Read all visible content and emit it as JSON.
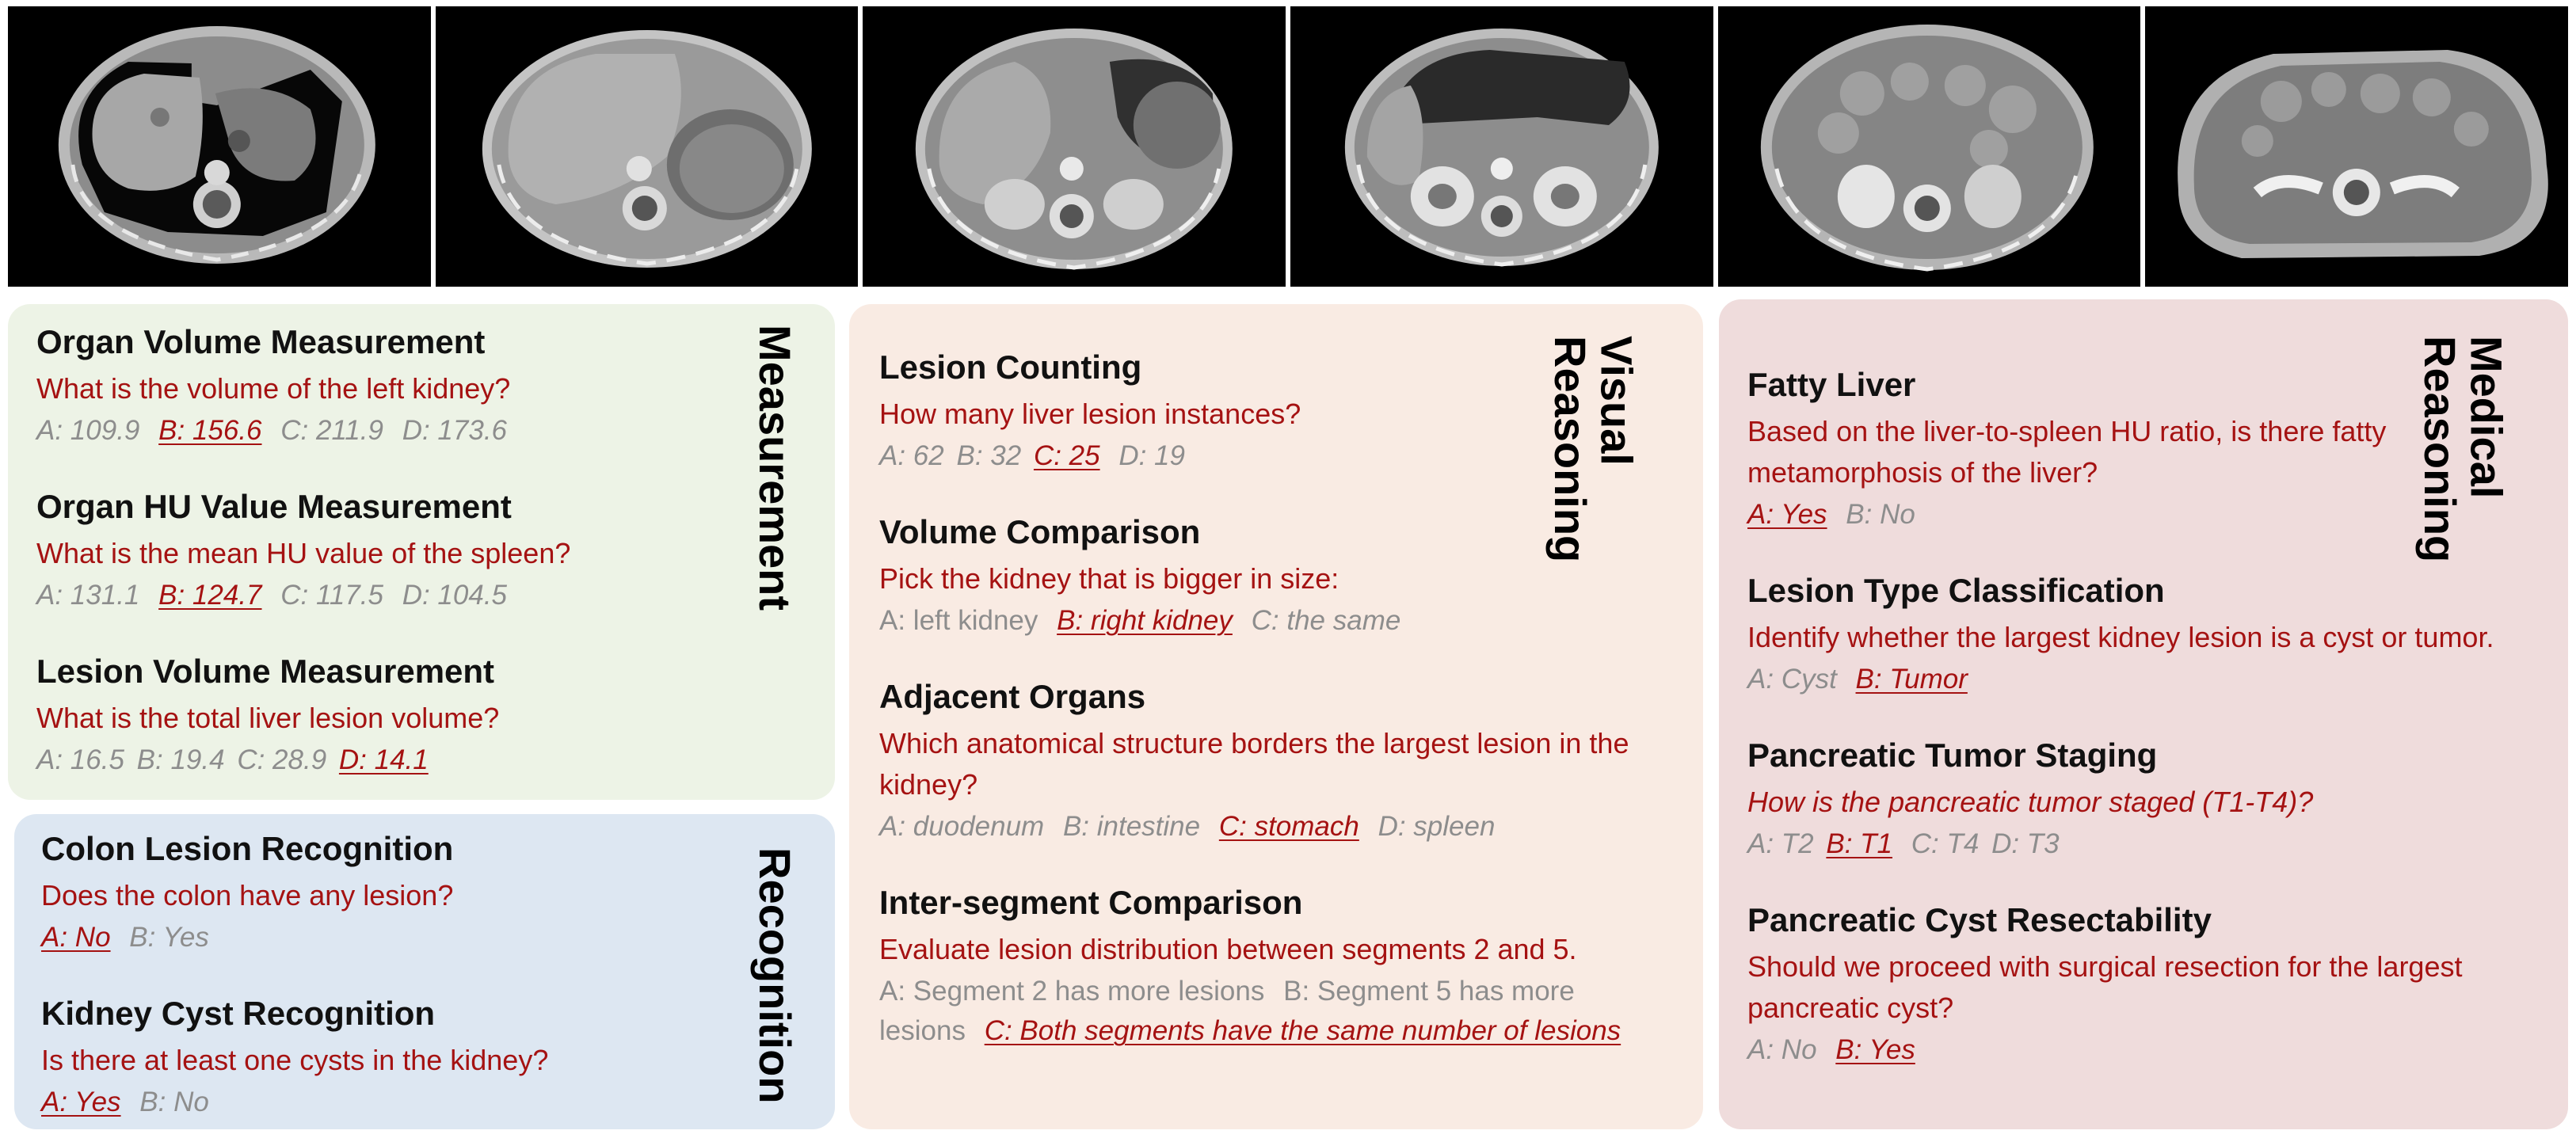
{
  "ct_images": [
    {
      "name": "ct-slice-1"
    },
    {
      "name": "ct-slice-2"
    },
    {
      "name": "ct-slice-3"
    },
    {
      "name": "ct-slice-4"
    },
    {
      "name": "ct-slice-5"
    },
    {
      "name": "ct-slice-6"
    }
  ],
  "colors": {
    "question": "#a51212",
    "option": "#8d8d8d",
    "measurement_bg": "#edf3e6",
    "recognition_bg": "#dde7f2",
    "visual_bg": "#f9ebe3",
    "medical_bg": "#efdcdc"
  },
  "measurement": {
    "category": "Measurement",
    "items": [
      {
        "title": "Organ Volume Measurement",
        "question": "What is the volume of the left kidney?",
        "options": [
          "A: 109.9",
          "B: 156.6",
          "C: 211.9",
          "D: 173.6"
        ],
        "correct": "B: 156.6"
      },
      {
        "title": "Organ HU Value Measurement",
        "question": "What is the mean HU value of the spleen?",
        "options": [
          "A: 131.1",
          "B: 124.7",
          "C: 117.5",
          "D: 104.5"
        ],
        "correct": "B: 124.7"
      },
      {
        "title": "Lesion Volume Measurement",
        "question": "What is the total liver lesion volume?",
        "options": [
          "A: 16.5",
          "B: 19.4",
          "C: 28.9",
          "D: 14.1"
        ],
        "correct": "D: 14.1"
      }
    ]
  },
  "recognition": {
    "category": "Recognition",
    "items": [
      {
        "title": "Colon Lesion Recognition",
        "question": "Does the colon have any lesion?",
        "options": [
          "A: No",
          "B: Yes"
        ],
        "correct": "A: No"
      },
      {
        "title": "Kidney Cyst Recognition",
        "question": "Is there at least one cysts in the kidney?",
        "options": [
          "A: Yes",
          "B: No"
        ],
        "correct": "A: Yes"
      }
    ]
  },
  "visual": {
    "category_line1": "Visual",
    "category_line2": "Reasoning",
    "items": [
      {
        "title": "Lesion Counting",
        "question": "How many liver lesion instances?",
        "options": [
          "A: 62",
          "B: 32",
          "C: 25",
          "D: 19"
        ],
        "correct": "C: 25"
      },
      {
        "title": "Volume Comparison",
        "question": "Pick the kidney that is bigger in size:",
        "options": [
          "A: left kidney",
          "B: right kidney",
          "C: the same"
        ],
        "correct": "B: right kidney"
      },
      {
        "title": "Adjacent Organs",
        "question": "Which anatomical structure borders the largest lesion in the kidney?",
        "options": [
          "A: duodenum",
          "B: intestine",
          "C: stomach",
          "D: spleen"
        ],
        "correct": "C: stomach"
      },
      {
        "title": "Inter-segment Comparison",
        "question": "Evaluate lesion distribution between segments 2 and 5.",
        "options": [
          "A: Segment 2 has more lesions",
          "B: Segment 5 has more lesions",
          "C: Both segments have the same number of lesions"
        ],
        "correct": "C: Both segments have the same number of lesions"
      }
    ]
  },
  "medical": {
    "category_line1": "Medical",
    "category_line2": "Reasoning",
    "items": [
      {
        "title": "Fatty Liver",
        "question": "Based on the liver-to-spleen HU ratio, is there fatty metamorphosis of the liver?",
        "options": [
          "A: Yes",
          "B: No"
        ],
        "correct": "A: Yes"
      },
      {
        "title": "Lesion Type Classification",
        "question": "Identify whether the largest kidney lesion is a cyst or tumor.",
        "options": [
          "A: Cyst",
          "B: Tumor"
        ],
        "correct": "B: Tumor"
      },
      {
        "title": "Pancreatic Tumor Staging",
        "question": "How is the pancreatic tumor staged (T1-T4)?",
        "options": [
          "A: T2",
          "B: T1",
          "C: T4",
          "D: T3"
        ],
        "correct": "B: T1"
      },
      {
        "title": "Pancreatic Cyst Resectability",
        "question": "Should we proceed with surgical resection for the largest pancreatic cyst?",
        "options": [
          "A: No",
          "B: Yes"
        ],
        "correct": "B: Yes"
      }
    ]
  }
}
